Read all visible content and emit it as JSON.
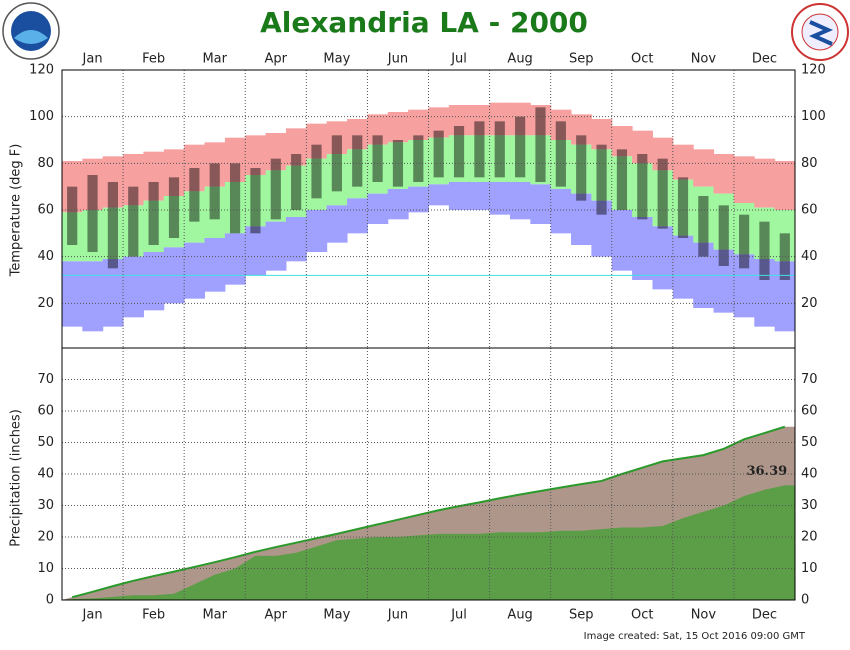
{
  "chart_data": [
    {
      "type": "temperature_range",
      "title": "Alexandria LA - 2000",
      "y_label": "Temperature (deg F)",
      "categories": [
        null,
        "Jan",
        null,
        null,
        "Feb",
        null,
        null,
        "Mar",
        null,
        null,
        "Apr",
        null,
        null,
        "May",
        null,
        null,
        "Jun",
        null,
        null,
        "Jul",
        null,
        null,
        "Aug",
        null,
        null,
        "Sep",
        null,
        null,
        "Oct",
        null,
        null,
        "Nov",
        null,
        null,
        "Dec",
        null
      ],
      "series": [
        {
          "color": "#f7a0a0",
          "values": [
            81,
            82,
            83,
            84,
            85,
            86,
            88,
            89,
            91,
            92,
            93,
            95,
            97,
            98,
            99,
            101,
            102,
            103,
            104,
            105,
            105,
            106,
            106,
            105,
            103,
            101,
            99,
            96,
            94,
            91,
            88,
            86,
            84,
            83,
            82,
            81
          ]
        },
        {
          "color": "#a0f7a0",
          "values": [
            59,
            60,
            61,
            62,
            64,
            66,
            68,
            70,
            72,
            75,
            77,
            79,
            82,
            84,
            86,
            88,
            89,
            90,
            91,
            92,
            92,
            92,
            92,
            92,
            90,
            88,
            86,
            83,
            80,
            77,
            73,
            70,
            67,
            63,
            61,
            60
          ]
        },
        {
          "color": "#a0a0ff",
          "values": [
            38,
            38,
            39,
            40,
            42,
            44,
            46,
            48,
            50,
            53,
            55,
            57,
            60,
            62,
            65,
            67,
            69,
            70,
            71,
            72,
            72,
            72,
            72,
            71,
            69,
            67,
            64,
            60,
            57,
            53,
            49,
            46,
            43,
            41,
            39,
            38
          ]
        },
        {
          "color": "#a0a0ff",
          "values": [
            10,
            8,
            10,
            14,
            17,
            20,
            22,
            25,
            28,
            32,
            34,
            38,
            42,
            46,
            50,
            54,
            56,
            59,
            62,
            60,
            60,
            58,
            56,
            54,
            50,
            45,
            40,
            34,
            30,
            26,
            22,
            18,
            16,
            14,
            10,
            8
          ]
        },
        {
          "color": "#000000",
          "values": [
            70,
            75,
            72,
            70,
            72,
            74,
            78,
            80,
            80,
            78,
            82,
            84,
            88,
            92,
            92,
            92,
            90,
            92,
            94,
            96,
            98,
            98,
            100,
            104,
            98,
            92,
            88,
            86,
            84,
            82,
            74,
            66,
            62,
            58,
            55,
            50
          ]
        },
        {
          "color": "#000000",
          "values": [
            45,
            42,
            35,
            40,
            45,
            48,
            55,
            56,
            50,
            50,
            56,
            60,
            65,
            68,
            70,
            72,
            70,
            72,
            74,
            74,
            74,
            74,
            74,
            72,
            70,
            64,
            58,
            60,
            56,
            52,
            48,
            40,
            36,
            35,
            30,
            30
          ]
        }
      ],
      "freeze_line": 32,
      "freeze_color": "#40e0e0",
      "ylim": [
        0,
        120
      ],
      "yticks": [
        20,
        40,
        60,
        80,
        100,
        120
      ],
      "grid": true
    },
    {
      "type": "cumulative_area",
      "y_label": "Precipitation (inches)",
      "categories": [
        null,
        "Jan",
        null,
        null,
        "Feb",
        null,
        null,
        "Mar",
        null,
        null,
        "Apr",
        null,
        null,
        "May",
        null,
        null,
        "Jun",
        null,
        null,
        "Jul",
        null,
        null,
        "Aug",
        null,
        null,
        "Sep",
        null,
        null,
        "Oct",
        null,
        null,
        "Nov",
        null,
        null,
        "Dec",
        null
      ],
      "series": [
        {
          "color": "#ae968a",
          "line_color": "#2a9a2a",
          "values": [
            0.9,
            2.6,
            4.4,
            6.1,
            7.6,
            9.0,
            10.5,
            12.0,
            13.6,
            15.3,
            16.8,
            18.2,
            19.6,
            21.0,
            22.5,
            24.0,
            25.5,
            27.0,
            28.5,
            29.8,
            31.0,
            32.3,
            33.5,
            34.6,
            35.7,
            36.8,
            37.8,
            40,
            42,
            44,
            45,
            46,
            48,
            51,
            53,
            55
          ]
        },
        {
          "color": "#5c9e48",
          "values": [
            0.3,
            0.5,
            1.0,
            1.5,
            1.5,
            2.0,
            5,
            8,
            10,
            14,
            14,
            15,
            17,
            19,
            19.5,
            20,
            20,
            20.5,
            21,
            21,
            21,
            21.5,
            21.5,
            21.5,
            22,
            22,
            22.5,
            23,
            23,
            23.5,
            26,
            28,
            30,
            33,
            35,
            36.39
          ],
          "value_labels": [
            null,
            null,
            null,
            null,
            null,
            null,
            null,
            null,
            null,
            null,
            null,
            null,
            null,
            null,
            null,
            null,
            null,
            null,
            null,
            null,
            null,
            null,
            null,
            null,
            null,
            null,
            null,
            null,
            null,
            null,
            null,
            null,
            null,
            null,
            null,
            "36.39"
          ]
        }
      ],
      "ylim": [
        0,
        80
      ],
      "yticks": [
        0,
        10,
        20,
        30,
        40,
        50,
        60,
        70
      ],
      "grid": true
    }
  ],
  "footer": "Image created: Sat, 15 Oct 2016 09:00 GMT"
}
